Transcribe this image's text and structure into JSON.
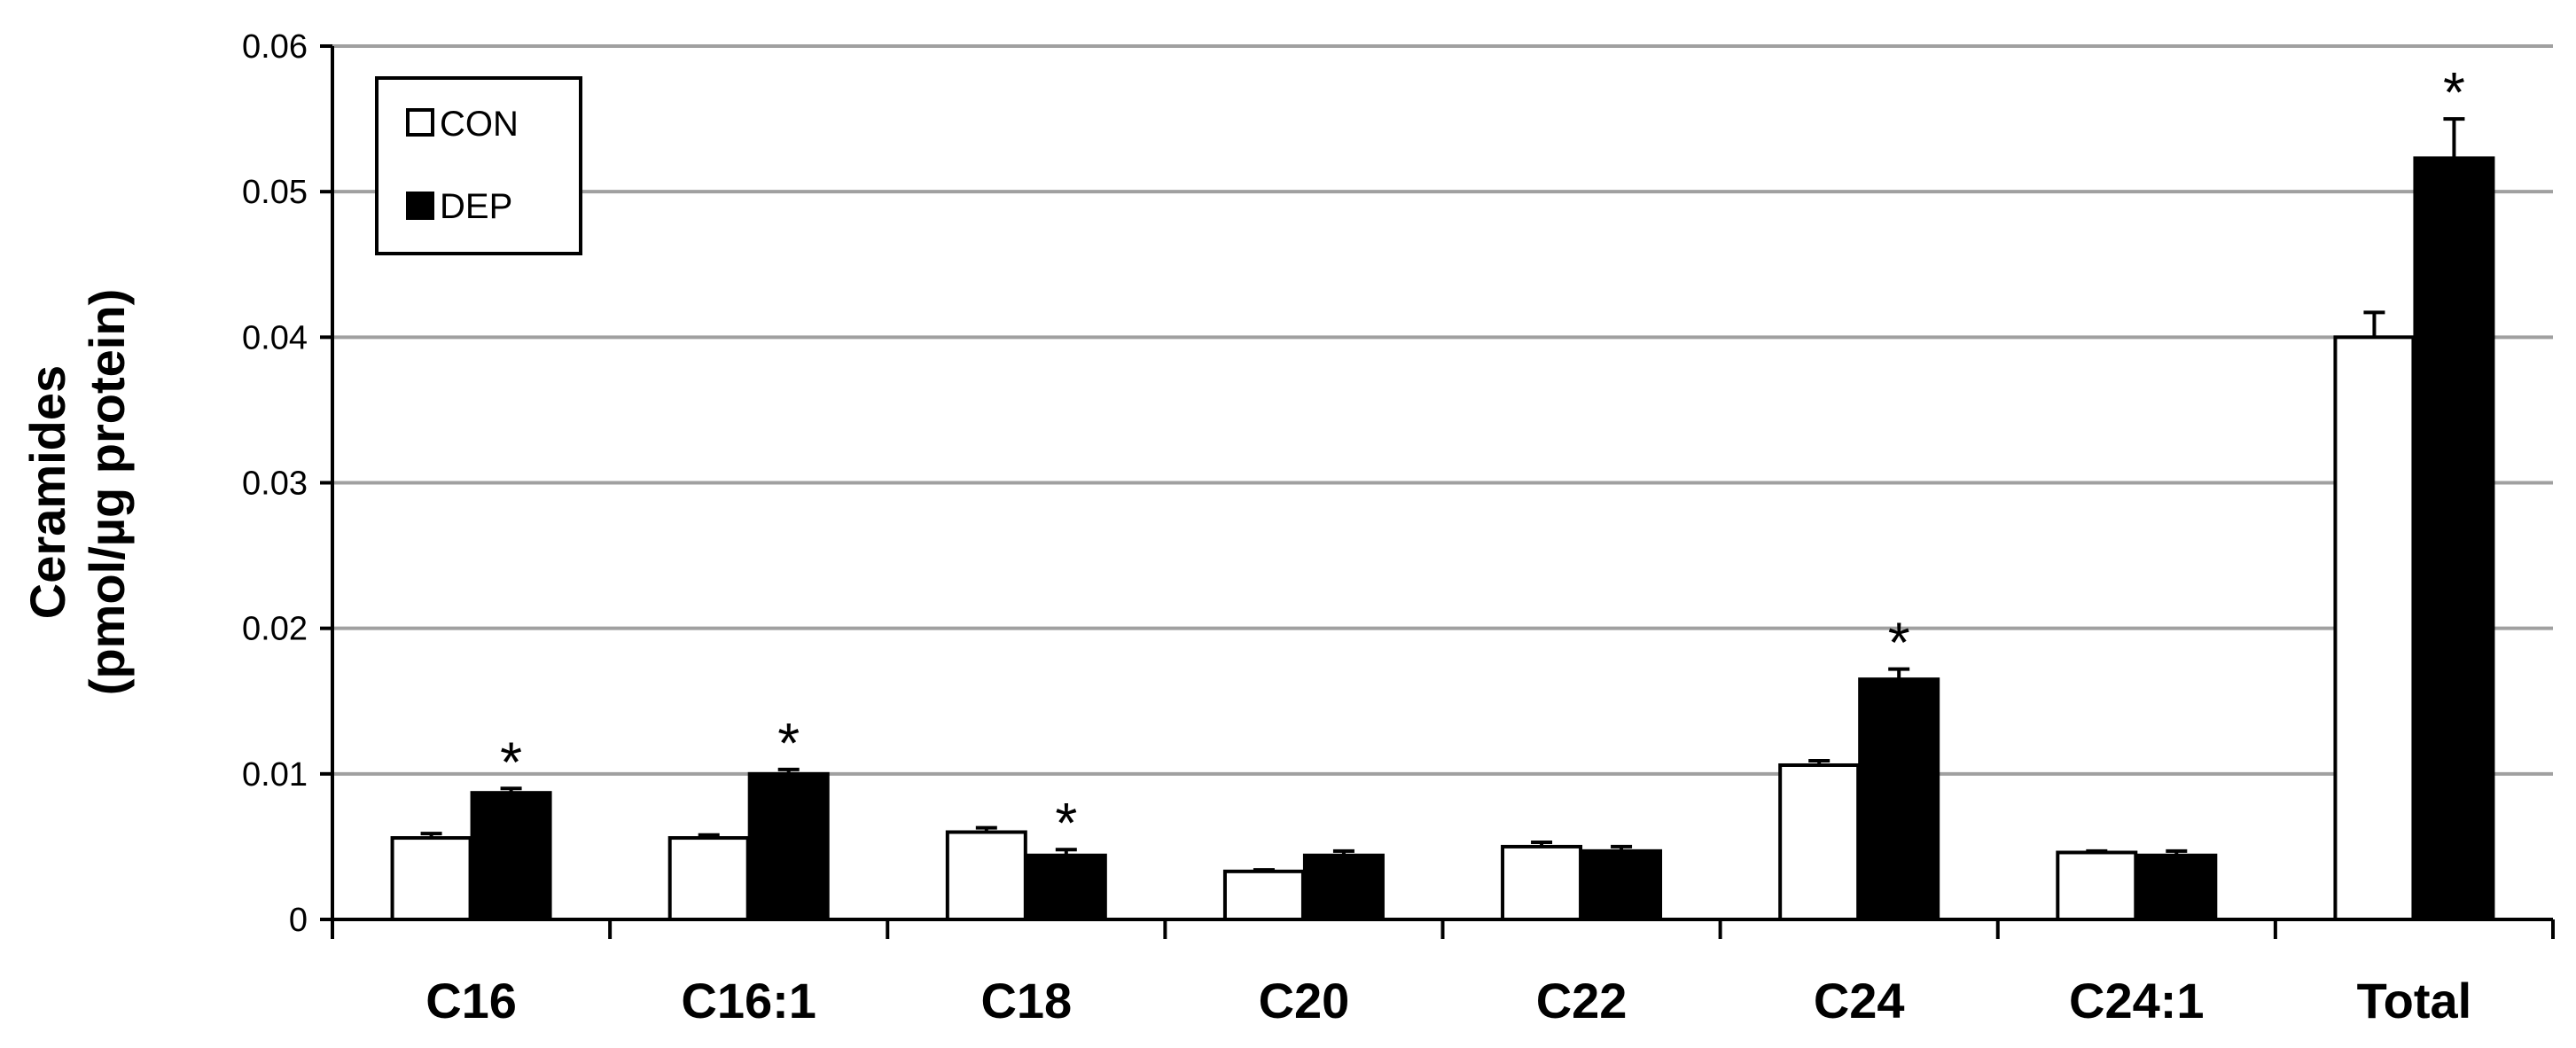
{
  "chart_data": {
    "type": "bar",
    "ylabel_line1": "Ceramides",
    "ylabel_line2": "(pmol/µg protein)",
    "ylim": [
      0,
      0.06
    ],
    "yticks": [
      "0",
      "0.01",
      "0.02",
      "0.03",
      "0.04",
      "0.05",
      "0.06"
    ],
    "ytick_values": [
      0,
      0.01,
      0.02,
      0.03,
      0.04,
      0.05,
      0.06
    ],
    "grid": true,
    "legend_position": "top-left",
    "categories": [
      "C16",
      "C16:1",
      "C18",
      "C20",
      "C22",
      "C24",
      "C24:1",
      "Total"
    ],
    "series": [
      {
        "name": "CON",
        "color": "#ffffff",
        "values": [
          0.0056,
          0.0056,
          0.006,
          0.0033,
          0.005,
          0.0106,
          0.0046,
          0.04
        ],
        "errors": [
          0.0003,
          0.0002,
          0.0003,
          0.0001,
          0.0003,
          0.0003,
          0.0001,
          0.0017
        ]
      },
      {
        "name": "DEP",
        "color": "#000000",
        "values": [
          0.0087,
          0.01,
          0.0044,
          0.0044,
          0.0047,
          0.0165,
          0.0044,
          0.0523
        ],
        "errors": [
          0.0003,
          0.0003,
          0.0004,
          0.0003,
          0.0003,
          0.0007,
          0.0003,
          0.0027
        ]
      }
    ],
    "significance_marker": "*",
    "significant": [
      true,
      true,
      true,
      false,
      false,
      true,
      false,
      true
    ]
  }
}
